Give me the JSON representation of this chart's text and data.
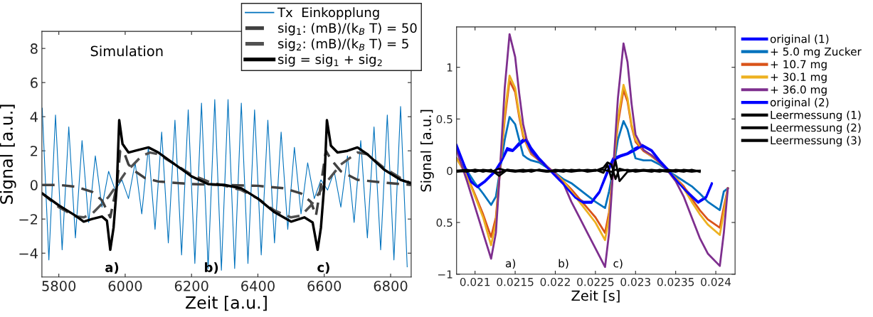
{
  "chart_data": [
    {
      "type": "line",
      "ylabel": "Signal [a.u.]",
      "xlabel": "Zeit [a.u.]",
      "xlim": [
        5749,
        6862
      ],
      "ylim": [
        -5.4,
        9
      ],
      "xticks": [
        5800,
        6000,
        6200,
        6400,
        6600,
        6800
      ],
      "yticks": [
        8,
        6,
        4,
        2,
        0,
        {
          "value": -2,
          "label": "−2"
        },
        {
          "value": -4,
          "label": "−4"
        }
      ],
      "legend": "top right",
      "grid": false,
      "annotations": [
        "Simulation",
        "a)",
        "b)",
        "c)"
      ],
      "series": [
        {
          "name": "Tx  Einkopplung",
          "color": "#0072bd",
          "line_style": "solid",
          "x": [
            5750,
            5770,
            5790,
            5810,
            5830,
            5850,
            5870,
            5890,
            5910,
            5930,
            5950,
            5970,
            5990,
            6010,
            6030,
            6050,
            6070,
            6090,
            6110,
            6130,
            6150,
            6170,
            6190,
            6210,
            6230,
            6250,
            6270,
            6290,
            6310,
            6330,
            6350,
            6370,
            6390,
            6410,
            6430,
            6450,
            6470,
            6490,
            6510,
            6530,
            6550,
            6570,
            6590,
            6610,
            6630,
            6650,
            6670,
            6690,
            6710,
            6730,
            6750,
            6770,
            6790,
            6810,
            6830,
            6850
          ],
          "values": [
            4.5,
            -4.4,
            4.1,
            -3.8,
            3.4,
            -3.1,
            2.6,
            -2.2,
            1.7,
            -1.3,
            0.8,
            -0.3,
            0.3,
            -0.8,
            1.3,
            -1.7,
            2.2,
            -2.6,
            3.1,
            -3.4,
            3.8,
            -4.1,
            4.4,
            -4.6,
            4.8,
            -4.9,
            5.0,
            -5.0,
            5.0,
            -4.9,
            4.8,
            -4.6,
            4.4,
            -4.1,
            3.8,
            -3.4,
            3.1,
            -2.6,
            2.2,
            -1.7,
            1.3,
            -0.8,
            0.3,
            -0.3,
            0.8,
            -1.3,
            1.7,
            -2.2,
            2.6,
            -3.1,
            3.4,
            -3.8,
            4.1,
            -4.4,
            4.6,
            -4.8
          ]
        },
        {
          "name": "sig$_{1}$: (mB)/(k$_{B}$ T) = 50",
          "color": "#404040",
          "line_style": "dashed",
          "x": [
            5750,
            5800,
            5850,
            5900,
            5930,
            5945,
            5955,
            5975,
            5985,
            5995,
            6010,
            6030,
            6060,
            6100,
            6200,
            6290,
            6400,
            6480,
            6530,
            6560,
            6575,
            6590,
            6605,
            6620,
            6650,
            6700,
            6800,
            6862
          ],
          "values": [
            0,
            0,
            -0.1,
            -0.4,
            -0.9,
            -1.5,
            -1.9,
            0,
            2.0,
            2.0,
            1.2,
            0.8,
            0.4,
            0.2,
            0.05,
            0,
            -0.05,
            -0.2,
            -0.5,
            -1.0,
            -1.8,
            0,
            2.0,
            1.5,
            0.8,
            0.3,
            0.1,
            0
          ]
        },
        {
          "name": "sig$_{2}$: (mB)/(k$_{B}$ T) = 5",
          "color": "#505050",
          "line_style": "dashed",
          "x": [
            5750,
            5800,
            5850,
            5875,
            5900,
            5950,
            5975,
            6000,
            6050,
            6075,
            6100,
            6150,
            6200,
            6250,
            6290,
            6350,
            6400,
            6450,
            6500,
            6530,
            6560,
            6600,
            6650,
            6700,
            6730,
            6780,
            6830,
            6862
          ],
          "values": [
            -0.5,
            -1.3,
            -1.85,
            -1.9,
            -1.7,
            -0.7,
            0,
            0.7,
            1.7,
            1.9,
            1.8,
            1.2,
            0.6,
            0.2,
            0,
            -0.3,
            -0.8,
            -1.5,
            -1.9,
            -1.8,
            -1.2,
            0,
            1.2,
            1.9,
            1.8,
            1.0,
            0.4,
            0.1
          ]
        },
        {
          "name": "sig = sig$_{1}$ + sig$_{2}$",
          "color": "#000000",
          "line_style": "solid",
          "x": [
            5750,
            5800,
            5850,
            5875,
            5900,
            5930,
            5945,
            5955,
            5965,
            5975,
            5982,
            5992,
            6010,
            6030,
            6070,
            6100,
            6150,
            6200,
            6250,
            6300,
            6350,
            6400,
            6450,
            6500,
            6540,
            6565,
            6580,
            6590,
            6600,
            6608,
            6620,
            6640,
            6670,
            6700,
            6730,
            6780,
            6830,
            6862
          ],
          "values": [
            -0.5,
            -1.2,
            -1.8,
            -2.15,
            -2.0,
            -1.85,
            -2.1,
            -3.8,
            -2.5,
            0,
            3.8,
            2.4,
            1.9,
            2.0,
            2.2,
            1.9,
            1.2,
            0.5,
            0.05,
            0,
            -0.2,
            -0.8,
            -1.6,
            -2.15,
            -1.9,
            -2.2,
            -3.8,
            -2.5,
            0,
            3.8,
            2.3,
            1.9,
            2.0,
            2.2,
            1.8,
            0.9,
            0.3,
            0.1
          ]
        }
      ]
    },
    {
      "type": "line",
      "ylabel": "Signal [a.u.]",
      "xlabel": "Zeit [s]",
      "xlim": [
        0.02077,
        0.02424
      ],
      "ylim": [
        -1.0,
        1.39
      ],
      "xticks": [
        0.021,
        0.0215,
        0.022,
        0.0225,
        0.023,
        0.0235,
        0.024
      ],
      "yticks": [
        1,
        0.5,
        0,
        {
          "value": -0.5,
          "label": "0.5"
        },
        {
          "value": -1,
          "label": "−1"
        }
      ],
      "legend": "right",
      "grid": false,
      "annotations": [
        "a)",
        "b)",
        "c)"
      ],
      "series": [
        {
          "name": "original (1)",
          "color": "#0000ff",
          "line_style": "solid",
          "x": [
            0.02077,
            0.02087,
            0.02095,
            0.02103,
            0.02112,
            0.02125,
            0.02133,
            0.0214,
            0.02147,
            0.02155,
            0.02163,
            0.0217,
            0.0218,
            0.02195,
            0.0221,
            0.02225,
            0.02235,
            0.02245,
            0.02255,
            0.02265,
            0.02272,
            0.02282,
            0.0229,
            0.023,
            0.02308,
            0.0232,
            0.0233,
            0.02342,
            0.02355,
            0.02367,
            0.02378,
            0.02388,
            0.02395
          ],
          "values": [
            0.25,
            0.05,
            -0.1,
            -0.15,
            -0.1,
            0,
            0.1,
            0.22,
            0.2,
            0.27,
            0.32,
            0.22,
            0.12,
            0,
            -0.12,
            -0.25,
            -0.3,
            -0.3,
            -0.2,
            0,
            0.12,
            0.15,
            0.17,
            0.22,
            0.25,
            0.2,
            0.1,
            0,
            -0.12,
            -0.22,
            -0.3,
            -0.25,
            -0.12
          ]
        },
        {
          "name": "+ 5.0 mg Zucker",
          "color": "#0072bd",
          "line_style": "solid",
          "x": [
            0.02077,
            0.0209,
            0.021,
            0.0211,
            0.0212,
            0.02126,
            0.02131,
            0.02137,
            0.02143,
            0.0215,
            0.02155,
            0.0216,
            0.02165,
            0.0217,
            0.0218,
            0.02196,
            0.0221,
            0.0222,
            0.0223,
            0.0224,
            0.0225,
            0.02262,
            0.02267,
            0.02272,
            0.02278,
            0.02285,
            0.0229,
            0.02295,
            0.023,
            0.0231,
            0.0232,
            0.0233,
            0.0234,
            0.0235,
            0.0236,
            0.0237,
            0.0238,
            0.0239,
            0.02405,
            0.0241,
            0.02415
          ],
          "values": [
            0.12,
            0,
            -0.12,
            -0.22,
            -0.33,
            -0.25,
            0,
            0.3,
            0.52,
            0.45,
            0.3,
            0.15,
            0.12,
            0.1,
            0.08,
            0,
            -0.08,
            -0.12,
            -0.18,
            -0.24,
            -0.3,
            -0.36,
            -0.2,
            0,
            0.3,
            0.48,
            0.4,
            0.25,
            0.12,
            0.1,
            0.1,
            0.06,
            0,
            -0.05,
            -0.1,
            -0.15,
            -0.22,
            -0.3,
            -0.38,
            -0.2,
            -0.17
          ]
        },
        {
          "name": "+ 10.7 mg",
          "color": "#d95319",
          "line_style": "solid",
          "x": [
            0.02077,
            0.0209,
            0.021,
            0.0211,
            0.0212,
            0.02126,
            0.02131,
            0.02137,
            0.02143,
            0.0215,
            0.02155,
            0.0216,
            0.02165,
            0.0217,
            0.0218,
            0.02196,
            0.0221,
            0.0222,
            0.0223,
            0.0224,
            0.0225,
            0.02262,
            0.02267,
            0.02272,
            0.02278,
            0.02285,
            0.0229,
            0.02295,
            0.023,
            0.0231,
            0.0232,
            0.0233,
            0.0234,
            0.0235,
            0.0236,
            0.0237,
            0.0238,
            0.0239,
            0.02405,
            0.0241,
            0.02415
          ],
          "values": [
            0.12,
            -0.05,
            -0.23,
            -0.42,
            -0.64,
            -0.45,
            0,
            0.5,
            0.87,
            0.76,
            0.52,
            0.33,
            0.24,
            0.16,
            0.1,
            0,
            -0.1,
            -0.18,
            -0.27,
            -0.36,
            -0.45,
            -0.6,
            -0.4,
            0,
            0.45,
            0.78,
            0.67,
            0.43,
            0.28,
            0.19,
            0.14,
            0.08,
            0,
            -0.07,
            -0.15,
            -0.27,
            -0.38,
            -0.47,
            -0.55,
            -0.35,
            -0.17
          ]
        },
        {
          "name": "+ 30.1 mg",
          "color": "#edb120",
          "line_style": "solid",
          "x": [
            0.02077,
            0.0209,
            0.021,
            0.0211,
            0.0212,
            0.02126,
            0.02131,
            0.02137,
            0.02143,
            0.0215,
            0.02155,
            0.0216,
            0.02165,
            0.0217,
            0.0218,
            0.02196,
            0.0221,
            0.0222,
            0.0223,
            0.0224,
            0.0225,
            0.02262,
            0.02267,
            0.02272,
            0.02278,
            0.02285,
            0.0229,
            0.02295,
            0.023,
            0.0231,
            0.0232,
            0.0233,
            0.0234,
            0.0235,
            0.0236,
            0.0237,
            0.0238,
            0.0239,
            0.02405,
            0.0241,
            0.02415
          ],
          "values": [
            0.12,
            -0.05,
            -0.25,
            -0.45,
            -0.72,
            -0.5,
            0,
            0.55,
            0.92,
            0.8,
            0.55,
            0.35,
            0.25,
            0.17,
            0.1,
            0,
            -0.1,
            -0.2,
            -0.3,
            -0.4,
            -0.5,
            -0.67,
            -0.45,
            0,
            0.5,
            0.83,
            0.7,
            0.45,
            0.3,
            0.2,
            0.14,
            0.08,
            0,
            -0.07,
            -0.17,
            -0.3,
            -0.42,
            -0.52,
            -0.62,
            -0.4,
            -0.17
          ]
        },
        {
          "name": "+ 36.0 mg",
          "color": "#7e2f8e",
          "line_style": "solid",
          "x": [
            0.02077,
            0.0209,
            0.021,
            0.0211,
            0.0212,
            0.02126,
            0.02131,
            0.02137,
            0.02143,
            0.0215,
            0.02155,
            0.0216,
            0.02165,
            0.0217,
            0.0218,
            0.02196,
            0.0221,
            0.0222,
            0.0223,
            0.0224,
            0.0225,
            0.02262,
            0.02267,
            0.02272,
            0.02278,
            0.02285,
            0.0229,
            0.02295,
            0.023,
            0.0231,
            0.0232,
            0.0233,
            0.0234,
            0.0235,
            0.0236,
            0.0237,
            0.0238,
            0.0239,
            0.02405,
            0.0241,
            0.02415
          ],
          "values": [
            0.2,
            -0.1,
            -0.35,
            -0.6,
            -0.85,
            -0.6,
            0,
            0.8,
            1.32,
            1.1,
            0.75,
            0.45,
            0.28,
            0.18,
            0.1,
            0,
            -0.12,
            -0.3,
            -0.45,
            -0.6,
            -0.75,
            -0.93,
            -0.6,
            0,
            0.7,
            1.23,
            1.05,
            0.65,
            0.35,
            0.2,
            0.15,
            0.08,
            0,
            -0.1,
            -0.25,
            -0.45,
            -0.65,
            -0.8,
            -0.92,
            -0.6,
            -0.17
          ]
        },
        {
          "name": "original (2)",
          "color": "#0000ff",
          "line_style": "solid",
          "x": [
            0.02077,
            0.02087,
            0.02095,
            0.02103,
            0.02112,
            0.02125,
            0.02133,
            0.0214,
            0.02147,
            0.02155,
            0.02163,
            0.0217,
            0.0218,
            0.02195,
            0.0221,
            0.02225,
            0.02235,
            0.02245,
            0.02255,
            0.02265,
            0.02272,
            0.02282,
            0.0229,
            0.023,
            0.02308,
            0.0232,
            0.0233,
            0.02342,
            0.02355,
            0.02367,
            0.02378,
            0.02388,
            0.02395
          ],
          "values": [
            0.23,
            0.04,
            -0.11,
            -0.16,
            -0.11,
            -0.01,
            0.09,
            0.2,
            0.19,
            0.25,
            0.3,
            0.2,
            0.11,
            -0.01,
            -0.13,
            -0.26,
            -0.31,
            -0.31,
            -0.21,
            -0.02,
            0.1,
            0.14,
            0.16,
            0.2,
            0.24,
            0.19,
            0.09,
            -0.01,
            -0.13,
            -0.23,
            -0.31,
            -0.26,
            -0.13
          ]
        },
        {
          "name": "Leermessung (1)",
          "color": "#000000",
          "line_style": "solid",
          "x": [
            0.02077,
            0.0209,
            0.021,
            0.0211,
            0.0212,
            0.0213,
            0.0214,
            0.0215,
            0.0216,
            0.0217,
            0.0218,
            0.0219,
            0.022,
            0.0221,
            0.0222,
            0.0223,
            0.0224,
            0.0225,
            0.0226,
            0.02265,
            0.0227,
            0.02275,
            0.0228,
            0.0229,
            0.023,
            0.0231,
            0.0232,
            0.0233,
            0.0234,
            0.0235,
            0.0236,
            0.0237,
            0.0238
          ],
          "values": [
            0,
            0.01,
            -0.01,
            0.01,
            0,
            -0.02,
            0.01,
            0,
            0.01,
            -0.01,
            0.01,
            0,
            -0.01,
            0.01,
            0,
            0.01,
            -0.01,
            0,
            0.01,
            0,
            -0.01,
            0.01,
            0,
            0.01,
            -0.01,
            0,
            0.01,
            0,
            -0.01,
            0.01,
            0,
            -0.01,
            0
          ]
        },
        {
          "name": "Leermessung (2)",
          "color": "#000000",
          "line_style": "solid",
          "x": [
            0.02077,
            0.0209,
            0.021,
            0.0211,
            0.0212,
            0.0213,
            0.0214,
            0.0215,
            0.0216,
            0.0217,
            0.0218,
            0.0219,
            0.022,
            0.0221,
            0.0222,
            0.0223,
            0.0224,
            0.0225,
            0.0226,
            0.02265,
            0.0227,
            0.02275,
            0.0228,
            0.0229,
            0.023,
            0.0231,
            0.0232,
            0.0233,
            0.0234,
            0.0235,
            0.0236,
            0.0237,
            0.0238
          ],
          "values": [
            0,
            -0.01,
            0.01,
            0,
            -0.01,
            0.02,
            0,
            -0.01,
            0,
            0.01,
            0,
            -0.01,
            0.01,
            0,
            -0.01,
            0,
            0.01,
            0,
            0.03,
            0.08,
            0.06,
            -0.08,
            0.02,
            0,
            0.01,
            0,
            -0.01,
            0.01,
            0,
            -0.01,
            0.01,
            0,
            0
          ]
        },
        {
          "name": "Leermessung (3)",
          "color": "#000000",
          "line_style": "solid",
          "x": [
            0.02077,
            0.0209,
            0.021,
            0.0211,
            0.0212,
            0.0213,
            0.0214,
            0.0215,
            0.0216,
            0.0217,
            0.0218,
            0.0219,
            0.022,
            0.0221,
            0.0222,
            0.0223,
            0.0224,
            0.0225,
            0.0226,
            0.02265,
            0.0227,
            0.02275,
            0.0228,
            0.0229,
            0.023,
            0.0231,
            0.0232,
            0.0233,
            0.0234,
            0.0235,
            0.0236,
            0.0237,
            0.0238
          ],
          "values": [
            -0.01,
            0,
            0.01,
            -0.01,
            0.01,
            -0.05,
            0.01,
            0,
            -0.01,
            0,
            0.01,
            -0.01,
            0,
            -0.01,
            0.01,
            0,
            0,
            0.01,
            -0.02,
            0.06,
            -0.08,
            0.1,
            -0.1,
            -0.01,
            0,
            0.01,
            0,
            -0.01,
            0.01,
            0,
            -0.01,
            0.01,
            -0.01
          ]
        }
      ]
    }
  ]
}
